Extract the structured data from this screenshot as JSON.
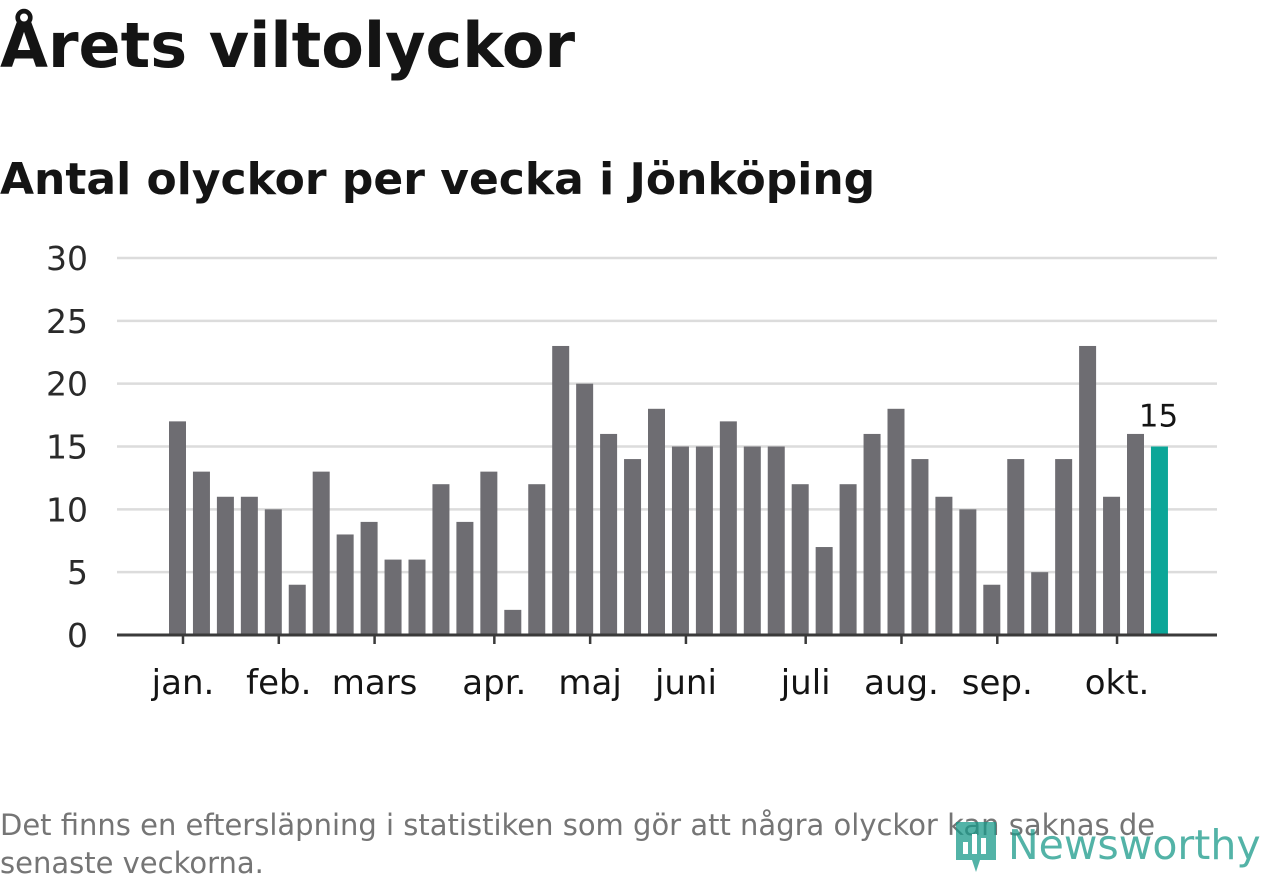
{
  "title": "Årets viltolyckor",
  "subtitle": "Antal olyckor per vecka i Jönköping",
  "footnote": "Det finns en eftersläpning i statistiken som gör att några olyckor kan saknas de senaste veckorna.",
  "logo": {
    "text": "Newsworthy",
    "icon": "newsworthy-logo-icon"
  },
  "colors": {
    "bar": "#6e6d72",
    "highlight": "#0ba698",
    "grid": "#dcdcdc",
    "axis": "#3a3a3a",
    "text": "#141414"
  },
  "chart_data": {
    "type": "bar",
    "ylim": [
      0,
      30
    ],
    "yticks": [
      0,
      5,
      10,
      15,
      20,
      25,
      30
    ],
    "grid": true,
    "values": [
      17,
      13,
      11,
      11,
      10,
      4,
      13,
      8,
      9,
      6,
      6,
      12,
      9,
      13,
      2,
      12,
      23,
      20,
      16,
      14,
      18,
      15,
      15,
      17,
      15,
      15,
      12,
      7,
      12,
      16,
      18,
      14,
      11,
      10,
      4,
      14,
      5,
      14,
      23,
      11,
      16,
      15
    ],
    "highlight_index": 41,
    "highlight_label": "15",
    "month_labels": [
      {
        "label": "jan.",
        "bar_index": 0.25
      },
      {
        "label": "feb.",
        "bar_index": 4.25
      },
      {
        "label": "mars",
        "bar_index": 8.25
      },
      {
        "label": "apr.",
        "bar_index": 13.25
      },
      {
        "label": "maj",
        "bar_index": 17.25
      },
      {
        "label": "juni",
        "bar_index": 21.25
      },
      {
        "label": "juli",
        "bar_index": 26.25
      },
      {
        "label": "aug.",
        "bar_index": 30.25
      },
      {
        "label": "sep.",
        "bar_index": 34.25
      },
      {
        "label": "okt.",
        "bar_index": 39.25
      }
    ]
  }
}
